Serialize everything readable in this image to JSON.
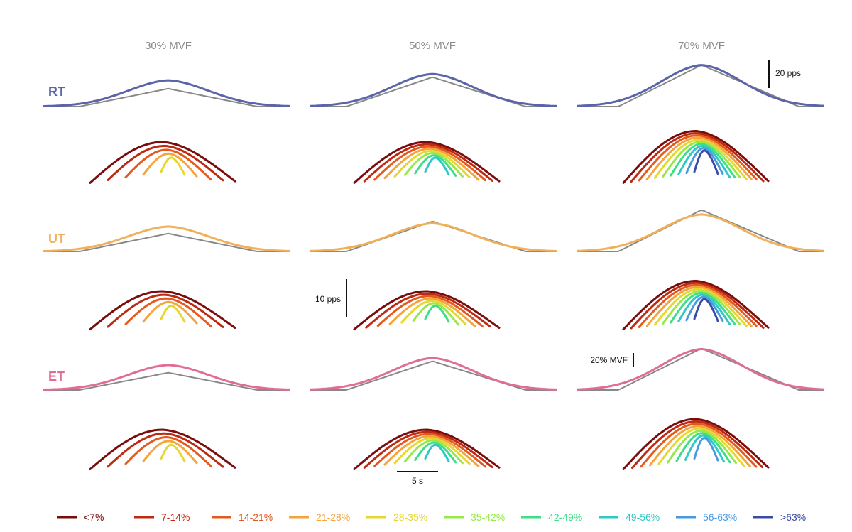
{
  "chart_data": {
    "type": "line",
    "title": "",
    "columns": [
      "30% MVF",
      "50% MVF",
      "70% MVF"
    ],
    "rows": [
      {
        "label": "RT",
        "color": "#5b64a8"
      },
      {
        "label": "UT",
        "color": "#f0b05a"
      },
      {
        "label": "ET",
        "color": "#e06d92"
      }
    ],
    "reference_color": "#888888",
    "x_units": "s (0 to 40, triangular ramp peaking at 20 s)",
    "force_traces": [
      {
        "row": "RT",
        "column": "30% MVF",
        "ref_peak": 28,
        "peak": 41
      },
      {
        "row": "RT",
        "column": "50% MVF",
        "ref_peak": 46,
        "peak": 51
      },
      {
        "row": "RT",
        "column": "70% MVF",
        "ref_peak": 65,
        "peak": 65
      },
      {
        "row": "UT",
        "column": "30% MVF",
        "ref_peak": 28,
        "peak": 39
      },
      {
        "row": "UT",
        "column": "50% MVF",
        "ref_peak": 47,
        "peak": 44
      },
      {
        "row": "UT",
        "column": "70% MVF",
        "ref_peak": 65,
        "peak": 58
      },
      {
        "row": "ET",
        "column": "30% MVF",
        "ref_peak": 27,
        "peak": 39
      },
      {
        "row": "ET",
        "column": "50% MVF",
        "ref_peak": 45,
        "peak": 50
      },
      {
        "row": "ET",
        "column": "70% MVF",
        "ref_peak": 65,
        "peak": 64
      }
    ],
    "discharge_panels": [
      {
        "row": "RT",
        "column": "30% MVF",
        "groups": [
          0,
          1,
          2,
          3,
          4
        ]
      },
      {
        "row": "RT",
        "column": "50% MVF",
        "groups": [
          0,
          1,
          2,
          3,
          4,
          5,
          6,
          7
        ]
      },
      {
        "row": "RT",
        "column": "70% MVF",
        "groups": [
          0,
          1,
          2,
          3,
          4,
          5,
          6,
          7,
          8,
          9
        ]
      },
      {
        "row": "UT",
        "column": "30% MVF",
        "groups": [
          0,
          1,
          2,
          3,
          4
        ]
      },
      {
        "row": "UT",
        "column": "50% MVF",
        "groups": [
          0,
          1,
          2,
          3,
          4,
          5,
          6
        ]
      },
      {
        "row": "UT",
        "column": "70% MVF",
        "groups": [
          0,
          1,
          2,
          3,
          4,
          5,
          6,
          7,
          8,
          9
        ]
      },
      {
        "row": "ET",
        "column": "30% MVF",
        "groups": [
          0,
          1,
          2,
          3,
          4
        ]
      },
      {
        "row": "ET",
        "column": "50% MVF",
        "groups": [
          0,
          1,
          2,
          3,
          4,
          5,
          6,
          7
        ]
      },
      {
        "row": "ET",
        "column": "70% MVF",
        "groups": [
          0,
          1,
          2,
          3,
          4,
          5,
          6,
          7,
          8
        ]
      }
    ],
    "legend": [
      {
        "label": "<7%",
        "color": "#7a0c0c"
      },
      {
        "label": "7-14%",
        "color": "#bb2a12"
      },
      {
        "label": "14-21%",
        "color": "#e4591d"
      },
      {
        "label": "21-28%",
        "color": "#f5a33c"
      },
      {
        "label": "28-35%",
        "color": "#e6d730"
      },
      {
        "label": "35-42%",
        "color": "#98e84a"
      },
      {
        "label": "42-49%",
        "color": "#3ede88"
      },
      {
        "label": "49-56%",
        "color": "#2ec9c6"
      },
      {
        "label": "56-63%",
        "color": "#4a9ae0"
      },
      {
        "label": ">63%",
        "color": "#3c4ca6"
      }
    ],
    "scale_bars": {
      "pps_top": "20 pps",
      "pps_mid": "10 pps",
      "mvf": "20% MVF",
      "time": "5 s"
    }
  }
}
